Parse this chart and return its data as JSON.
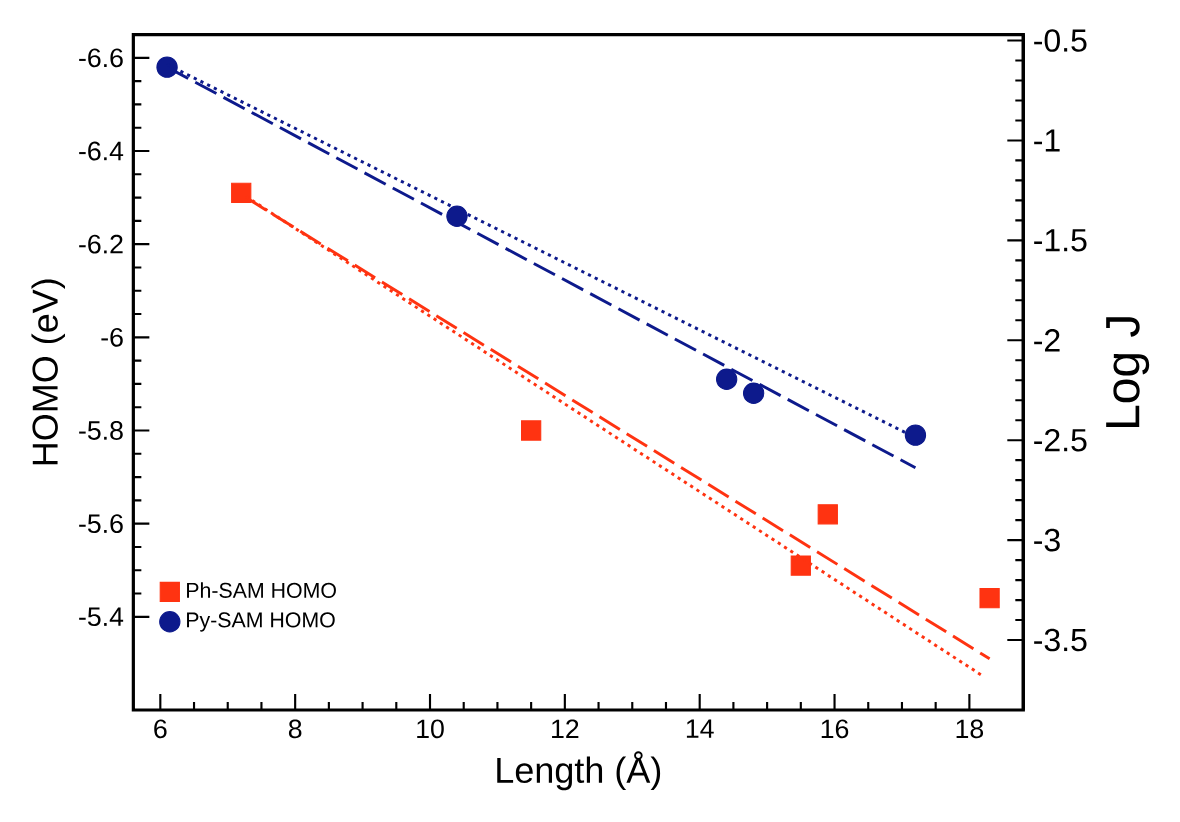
{
  "chart_data": {
    "type": "scatter",
    "xlabel": "Length (Å)",
    "ylabel": "HOMO (eV)",
    "y2label": "Log J",
    "xlim": [
      5.6,
      18.8
    ],
    "xticks": [
      6,
      8,
      10,
      12,
      14,
      16,
      18
    ],
    "ylim": [
      -5.2,
      -6.65
    ],
    "yticks": [
      -6.6,
      -6.4,
      -6.2,
      -6,
      -5.8,
      -5.6,
      -5.4
    ],
    "y2lim": [
      -3.85,
      -0.47
    ],
    "y2ticks": [
      -0.5,
      -1,
      -1.5,
      -2,
      -2.5,
      -3,
      -3.5
    ],
    "legend": "bottom left",
    "grid": false,
    "series": [
      {
        "name": "Ph-SAM HOMO",
        "marker": "square",
        "color": "#ff3311",
        "x": [
          7.2,
          11.5,
          15.5,
          15.9,
          18.3
        ],
        "values": [
          -6.31,
          -5.8,
          -5.51,
          -5.62,
          -5.44
        ]
      },
      {
        "name": "Py-SAM HOMO",
        "marker": "circle",
        "color": "#0d1a8c",
        "x": [
          6.1,
          10.4,
          14.4,
          14.8,
          17.2
        ],
        "values": [
          -6.58,
          -6.26,
          -5.91,
          -5.88,
          -5.79
        ]
      },
      {
        "type": "line",
        "line_style": "dashed",
        "color": "#ff3311",
        "x": [
          7.27,
          18.3
        ],
        "values": [
          -6.3,
          -5.31
        ]
      },
      {
        "type": "line",
        "line_style": "dashed",
        "color": "#0d1a8c",
        "x": [
          6.1,
          17.2
        ],
        "values": [
          -6.58,
          -5.72
        ]
      },
      {
        "type": "line",
        "line_style": "dotted",
        "axis": "y2",
        "color": "#ff3311",
        "x": [
          7.27,
          18.2
        ],
        "values": [
          -1.28,
          -3.68
        ]
      },
      {
        "type": "line",
        "line_style": "dotted",
        "axis": "y2",
        "color": "#0d1a8c",
        "x": [
          6.1,
          17.1
        ],
        "values": [
          -0.62,
          -2.47
        ]
      }
    ]
  }
}
